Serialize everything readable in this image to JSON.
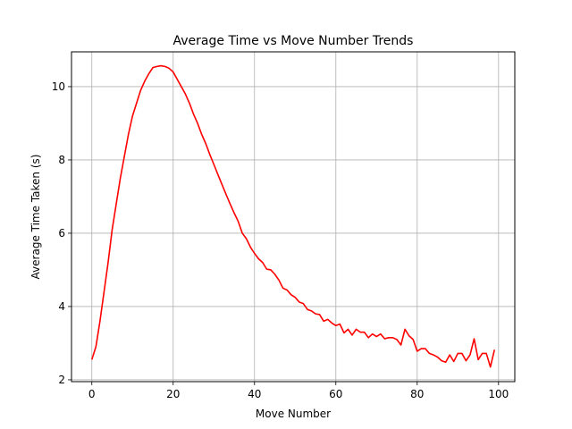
{
  "chart_data": {
    "type": "line",
    "title": "Average Time vs Move Number Trends",
    "xlabel": "Move Number",
    "ylabel": "Average Time Taken (s)",
    "xlim": [
      -5,
      104
    ],
    "ylim": [
      1.95,
      10.95
    ],
    "grid": true,
    "xticks": [
      0,
      20,
      40,
      60,
      80,
      100
    ],
    "yticks": [
      2,
      4,
      6,
      8,
      10
    ],
    "series": [
      {
        "color": "#ff0000",
        "x": [
          0,
          1,
          2,
          3,
          4,
          5,
          6,
          7,
          8,
          9,
          10,
          11,
          12,
          13,
          14,
          15,
          16,
          17,
          18,
          19,
          20,
          21,
          22,
          23,
          24,
          25,
          26,
          27,
          28,
          29,
          30,
          31,
          32,
          33,
          34,
          35,
          36,
          37,
          38,
          39,
          40,
          41,
          42,
          43,
          44,
          45,
          46,
          47,
          48,
          49,
          50,
          51,
          52,
          53,
          54,
          55,
          56,
          57,
          58,
          59,
          60,
          61,
          62,
          63,
          64,
          65,
          66,
          67,
          68,
          69,
          70,
          71,
          72,
          73,
          74,
          75,
          76,
          77,
          78,
          79,
          80,
          81,
          82,
          83,
          84,
          85,
          86,
          87,
          88,
          89,
          90,
          91,
          92,
          93,
          94,
          95,
          96,
          97,
          98,
          99
        ],
        "values": [
          2.55,
          2.9,
          3.6,
          4.4,
          5.2,
          6.1,
          6.8,
          7.5,
          8.1,
          8.7,
          9.2,
          9.55,
          9.9,
          10.15,
          10.35,
          10.52,
          10.55,
          10.57,
          10.55,
          10.5,
          10.4,
          10.2,
          10.0,
          9.8,
          9.55,
          9.25,
          9.0,
          8.7,
          8.45,
          8.15,
          7.88,
          7.6,
          7.33,
          7.06,
          6.8,
          6.55,
          6.32,
          6.0,
          5.85,
          5.62,
          5.45,
          5.3,
          5.2,
          5.02,
          5.0,
          4.88,
          4.72,
          4.5,
          4.45,
          4.32,
          4.25,
          4.12,
          4.08,
          3.92,
          3.88,
          3.8,
          3.78,
          3.6,
          3.65,
          3.55,
          3.48,
          3.52,
          3.28,
          3.38,
          3.22,
          3.38,
          3.3,
          3.3,
          3.15,
          3.25,
          3.18,
          3.25,
          3.12,
          3.15,
          3.15,
          3.1,
          2.95,
          3.38,
          3.2,
          3.1,
          2.78,
          2.85,
          2.85,
          2.72,
          2.68,
          2.62,
          2.52,
          2.48,
          2.68,
          2.5,
          2.72,
          2.72,
          2.52,
          2.68,
          3.12,
          2.55,
          2.72,
          2.72,
          2.35,
          2.82
        ]
      }
    ]
  }
}
